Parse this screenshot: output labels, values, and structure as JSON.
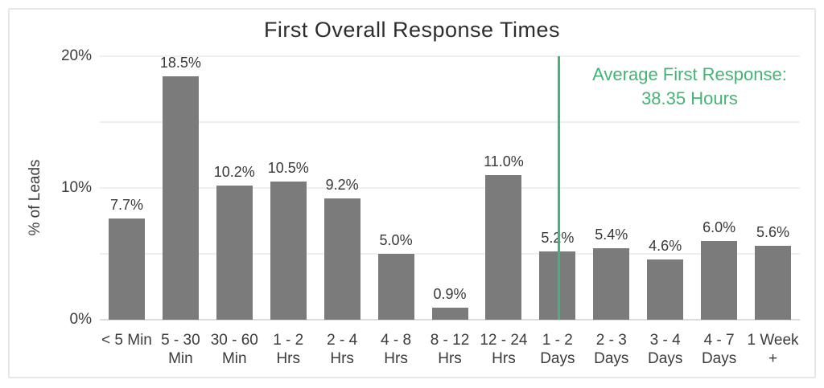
{
  "chart_data": {
    "type": "bar",
    "title": "First Overall Response Times",
    "xlabel": "",
    "ylabel": "% of Leads",
    "ylim": [
      0,
      20
    ],
    "grid": true,
    "gridline_values": [
      5,
      10,
      15,
      20
    ],
    "yticks": [
      {
        "value": 0,
        "label": "0%"
      },
      {
        "value": 10,
        "label": "10%"
      },
      {
        "value": 20,
        "label": "20%"
      }
    ],
    "categories": [
      [
        "< 5 Min"
      ],
      [
        "5 - 30",
        "Min"
      ],
      [
        "30 - 60",
        "Min"
      ],
      [
        "1 - 2",
        "Hrs"
      ],
      [
        "2 - 4",
        "Hrs"
      ],
      [
        "4 - 8",
        "Hrs"
      ],
      [
        "8 - 12",
        "Hrs"
      ],
      [
        "12 - 24",
        "Hrs"
      ],
      [
        "1 - 2",
        "Days"
      ],
      [
        "2 - 3",
        "Days"
      ],
      [
        "3 - 4",
        "Days"
      ],
      [
        "4 - 7",
        "Days"
      ],
      [
        "1 Week",
        "+"
      ]
    ],
    "values": [
      7.7,
      18.5,
      10.2,
      10.5,
      9.2,
      5.0,
      0.9,
      11.0,
      5.2,
      5.4,
      4.6,
      6.0,
      5.6
    ],
    "value_labels": [
      "7.7%",
      "18.5%",
      "10.2%",
      "10.5%",
      "9.2%",
      "5.0%",
      "0.9%",
      "11.0%",
      "5.2%",
      "5.4%",
      "4.6%",
      "6.0%",
      "5.6%"
    ],
    "annotation": {
      "lines": [
        "Average First Response:",
        "38.35 Hours"
      ],
      "average_value_hours": 38.35,
      "line_x_fraction": 0.656
    },
    "colors": {
      "bar": "#7b7b7b",
      "accent_green": "#45b376",
      "gridline": "#efefef",
      "axis_line": "#dcdcdc",
      "title_text": "#2d2d2d",
      "label_text": "#3c3c3c"
    },
    "legend": null
  }
}
